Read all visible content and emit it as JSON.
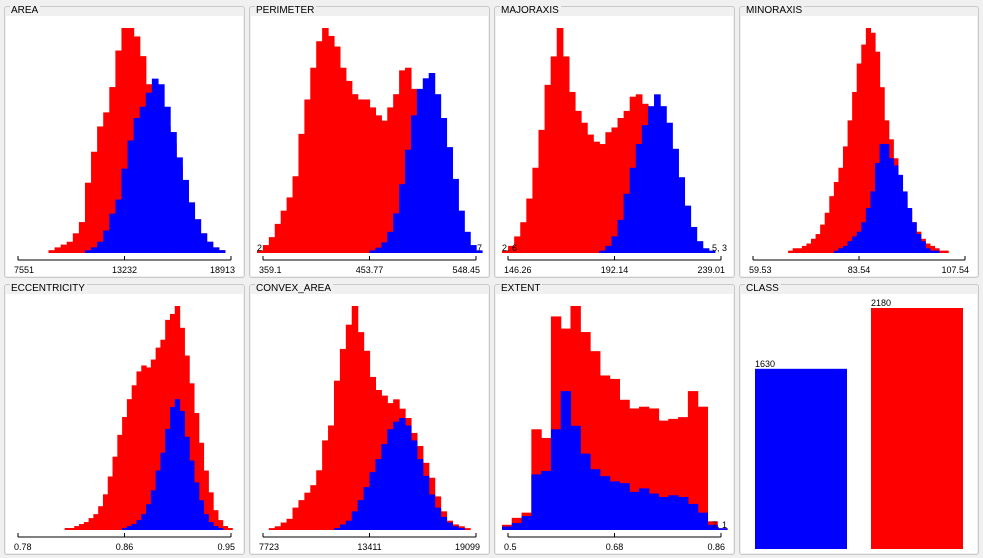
{
  "colors": {
    "class_a": "#0000ff",
    "class_b": "#ff0000",
    "panel_bg": "#f0f0f0",
    "plot_bg": "#ffffff"
  },
  "panels": [
    {
      "title": "AREA"
    },
    {
      "title": "PERIMETER"
    },
    {
      "title": "MAJORAXIS"
    },
    {
      "title": "MINORAXIS"
    },
    {
      "title": "ECCENTRICITY"
    },
    {
      "title": "CONVEX_AREA"
    },
    {
      "title": "EXTENT"
    },
    {
      "title": "CLASS"
    }
  ],
  "chart_data": [
    {
      "type": "bar",
      "title": "AREA",
      "ticks": [
        "7551",
        "13232",
        "18913"
      ],
      "range": [
        7551,
        18913
      ],
      "series": [
        {
          "values": [
            0,
            0,
            0,
            0,
            0,
            0,
            0,
            0,
            0,
            0,
            0,
            0,
            1,
            2,
            4,
            8,
            14,
            19,
            30,
            40,
            48,
            52,
            57,
            62,
            60,
            52,
            43,
            34,
            26,
            18,
            12,
            7,
            4,
            2,
            1,
            0,
            0
          ]
        },
        {
          "values": [
            0,
            0,
            0,
            0,
            0,
            0,
            1,
            2,
            3,
            4,
            7,
            11,
            25,
            36,
            45,
            50,
            59,
            72,
            80,
            80,
            77,
            70,
            60,
            55,
            52,
            45,
            39,
            31,
            25,
            18,
            12,
            7,
            4,
            2,
            1,
            0,
            0
          ]
        }
      ],
      "end_labels": [
        "",
        ""
      ]
    },
    {
      "type": "bar",
      "title": "PERIMETER",
      "ticks": [
        "359.1",
        "453.77",
        "548.45"
      ],
      "range": [
        359.1,
        548.45
      ],
      "series": [
        {
          "values": [
            0,
            0,
            0,
            0,
            0,
            0,
            0,
            0,
            0,
            0,
            0,
            0,
            0,
            0,
            0,
            0,
            0,
            0,
            0,
            1,
            2,
            4,
            8,
            15,
            26,
            39,
            52,
            62,
            66,
            68,
            60,
            51,
            40,
            28,
            16,
            8,
            3,
            1
          ]
        },
        {
          "values": [
            1,
            3,
            6,
            11,
            16,
            21,
            29,
            45,
            58,
            70,
            80,
            85,
            82,
            78,
            70,
            65,
            60,
            58,
            58,
            55,
            52,
            50,
            55,
            60,
            69,
            70,
            62,
            54,
            42,
            30,
            18,
            9,
            4,
            2,
            1,
            0,
            0,
            0
          ]
        }
      ],
      "end_labels": [
        "2",
        "7"
      ]
    },
    {
      "type": "bar",
      "title": "MAJORAXIS",
      "ticks": [
        "146.26",
        "192.14",
        "239.01"
      ],
      "range": [
        146.26,
        239.01
      ],
      "series": [
        {
          "values": [
            0,
            0,
            0,
            0,
            0,
            0,
            0,
            0,
            0,
            0,
            0,
            0,
            0,
            0,
            0,
            0,
            1,
            3,
            7,
            14,
            25,
            36,
            46,
            54,
            62,
            67,
            62,
            55,
            44,
            32,
            20,
            11,
            5,
            2,
            1,
            0,
            0
          ]
        },
        {
          "values": [
            1,
            3,
            7,
            13,
            23,
            36,
            52,
            71,
            83,
            95,
            83,
            68,
            60,
            55,
            50,
            47,
            46,
            51,
            53,
            57,
            60,
            66,
            67,
            63,
            55,
            44,
            34,
            24,
            14,
            8,
            4,
            2,
            1,
            0,
            0,
            0,
            0
          ]
        }
      ],
      "end_labels": [
        "2, 6",
        "5, 3"
      ]
    },
    {
      "type": "bar",
      "title": "MINORAXIS",
      "ticks": [
        "59.53",
        "83.54",
        "107.54"
      ],
      "range": [
        59.53,
        107.54
      ],
      "series": [
        {
          "values": [
            0,
            0,
            0,
            0,
            0,
            0,
            0,
            0,
            0,
            0,
            0,
            0,
            0,
            0,
            0,
            0,
            0,
            0,
            0,
            1,
            2,
            3,
            5,
            7,
            9,
            13,
            19,
            26,
            38,
            46,
            46,
            40,
            37,
            33,
            26,
            19,
            13,
            8,
            5,
            2,
            1,
            1,
            0,
            0,
            0,
            0,
            0,
            0,
            0
          ]
        },
        {
          "values": [
            0,
            0,
            0,
            0,
            0,
            0,
            0,
            0,
            0,
            1,
            2,
            2,
            3,
            4,
            6,
            8,
            12,
            17,
            24,
            30,
            36,
            45,
            56,
            68,
            80,
            88,
            95,
            93,
            85,
            70,
            56,
            48,
            40,
            32,
            24,
            18,
            13,
            9,
            6,
            4,
            3,
            2,
            1,
            1,
            0,
            0,
            0,
            0,
            0
          ]
        }
      ],
      "end_labels": [
        "",
        ""
      ]
    },
    {
      "type": "bar",
      "title": "ECCENTRICITY",
      "ticks": [
        "0.78",
        "0.86",
        "0.95"
      ],
      "range": [
        0.78,
        0.95
      ],
      "series": [
        {
          "values": [
            0,
            0,
            0,
            0,
            0,
            0,
            0,
            0,
            0,
            0,
            0,
            0,
            0,
            0,
            0,
            0,
            0,
            0,
            0,
            0,
            0,
            0,
            0,
            1,
            2,
            3,
            5,
            8,
            13,
            20,
            30,
            39,
            51,
            62,
            66,
            60,
            47,
            35,
            24,
            15,
            8,
            4,
            2,
            1,
            0,
            0,
            0
          ]
        },
        {
          "values": [
            0,
            0,
            0,
            0,
            0,
            0,
            0,
            0,
            0,
            0,
            0,
            1,
            1,
            2,
            3,
            4,
            6,
            8,
            12,
            18,
            27,
            37,
            48,
            57,
            66,
            73,
            80,
            83,
            82,
            86,
            92,
            96,
            106,
            109,
            113,
            102,
            88,
            74,
            59,
            44,
            30,
            19,
            10,
            5,
            2,
            1,
            0
          ]
        }
      ],
      "end_labels": [
        "",
        ""
      ]
    },
    {
      "type": "bar",
      "title": "CONVEX_AREA",
      "ticks": [
        "7723",
        "13411",
        "19099"
      ],
      "range": [
        7723,
        19099
      ],
      "series": [
        {
          "values": [
            0,
            0,
            0,
            0,
            0,
            0,
            0,
            0,
            0,
            0,
            0,
            0,
            0,
            1,
            3,
            5,
            10,
            16,
            23,
            31,
            38,
            46,
            54,
            58,
            60,
            56,
            48,
            38,
            29,
            19,
            12,
            7,
            4,
            2,
            1,
            0,
            0,
            0
          ]
        },
        {
          "values": [
            0,
            0,
            1,
            2,
            4,
            6,
            12,
            16,
            20,
            24,
            32,
            48,
            56,
            80,
            97,
            110,
            120,
            106,
            96,
            82,
            75,
            72,
            68,
            70,
            65,
            60,
            52,
            45,
            36,
            28,
            18,
            10,
            5,
            3,
            2,
            1,
            0,
            0
          ]
        }
      ],
      "end_labels": [
        "",
        ""
      ]
    },
    {
      "type": "bar",
      "title": "EXTENT",
      "ticks": [
        "0.5",
        "0.68",
        "0.86"
      ],
      "range": [
        0.5,
        0.86
      ],
      "series": [
        {
          "values": [
            2,
            4,
            8,
            32,
            34,
            58,
            80,
            60,
            44,
            35,
            31,
            28,
            27,
            22,
            24,
            21,
            19,
            20,
            19,
            15,
            10,
            3,
            1
          ]
        },
        {
          "values": [
            3,
            7,
            10,
            58,
            53,
            123,
            116,
            129,
            114,
            103,
            89,
            87,
            75,
            70,
            71,
            70,
            63,
            64,
            65,
            80,
            71,
            5,
            1
          ]
        }
      ],
      "end_labels": [
        "",
        "7, 1"
      ]
    },
    {
      "type": "bar",
      "title": "CLASS",
      "categories": [
        "",
        ""
      ],
      "values": [
        1630,
        2180
      ],
      "data_labels": [
        "1630",
        "2180"
      ],
      "ylim": [
        0,
        2180
      ]
    }
  ]
}
